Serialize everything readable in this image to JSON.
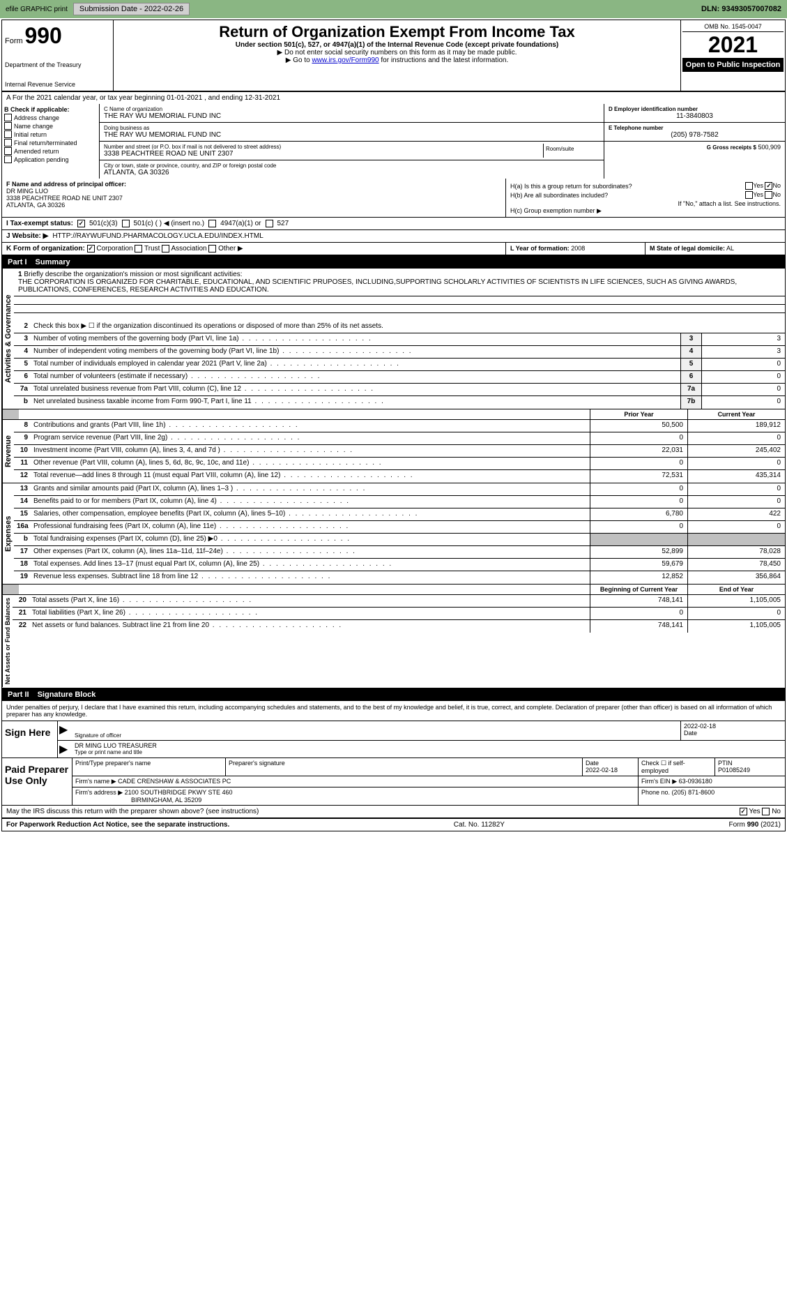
{
  "top": {
    "efile": "efile GRAPHIC print",
    "submission_label": "Submission Date - 2022-02-26",
    "dln": "DLN: 93493057007082"
  },
  "header": {
    "form_label": "Form",
    "form_number": "990",
    "title": "Return of Organization Exempt From Income Tax",
    "subtitle": "Under section 501(c), 527, or 4947(a)(1) of the Internal Revenue Code (except private foundations)",
    "note1": "▶ Do not enter social security numbers on this form as it may be made public.",
    "note2_pre": "▶ Go to ",
    "note2_link": "www.irs.gov/Form990",
    "note2_post": " for instructions and the latest information.",
    "dept": "Department of the Treasury",
    "irs": "Internal Revenue Service",
    "omb": "OMB No. 1545-0047",
    "year": "2021",
    "open": "Open to Public Inspection"
  },
  "row_a": "A For the 2021 calendar year, or tax year beginning 01-01-2021    , and ending 12-31-2021",
  "section_b": {
    "header": "B Check if applicable:",
    "checks": [
      "Address change",
      "Name change",
      "Initial return",
      "Final return/terminated",
      "Amended return",
      "Application pending"
    ],
    "c_label": "C Name of organization",
    "c_name": "THE RAY WU MEMORIAL FUND INC",
    "dba_label": "Doing business as",
    "dba": "THE RAY WU MEMORIAL FUND INC",
    "addr_label": "Number and street (or P.O. box if mail is not delivered to street address)",
    "addr": "3338 PEACHTREE ROAD NE UNIT 2307",
    "room_label": "Room/suite",
    "city_label": "City or town, state or province, country, and ZIP or foreign postal code",
    "city": "ATLANTA, GA  30326",
    "d_label": "D Employer identification number",
    "d_val": "11-3840803",
    "e_label": "E Telephone number",
    "e_val": "(205) 978-7582",
    "g_label": "G Gross receipts $",
    "g_val": "500,909"
  },
  "section_f": {
    "label": "F Name and address of principal officer:",
    "name": "DR MING LUO",
    "addr1": "3338 PEACHTREE ROAD NE UNIT 2307",
    "addr2": "ATLANTA, GA  30326"
  },
  "section_h": {
    "ha": "H(a) Is this a group return for subordinates?",
    "ha_yes": "Yes",
    "ha_no": "No",
    "hb": "H(b) Are all subordinates included?",
    "hb_yes": "Yes",
    "hb_no": "No",
    "hb_note": "If \"No,\" attach a list. See instructions.",
    "hc": "H(c) Group exemption number ▶"
  },
  "row_i": {
    "label": "I Tax-exempt status:",
    "opt1": "501(c)(3)",
    "opt2": "501(c) (   ) ◀ (insert no.)",
    "opt3": "4947(a)(1) or",
    "opt4": "527"
  },
  "row_j": {
    "label": "J Website: ▶",
    "val": "HTTP://RAYWUFUND.PHARMACOLOGY.UCLA.EDU/INDEX.HTML"
  },
  "row_k": {
    "label": "K Form of organization:",
    "opts": [
      "Corporation",
      "Trust",
      "Association",
      "Other ▶"
    ]
  },
  "row_l": {
    "label": "L Year of formation:",
    "val": "2008"
  },
  "row_m": {
    "label": "M State of legal domicile:",
    "val": "AL"
  },
  "part1": {
    "num": "Part I",
    "title": "Summary",
    "q1_label": "1",
    "q1": "Briefly describe the organization's mission or most significant activities:",
    "q1_text": "THE CORPORATION IS ORGANIZED FOR CHARITABLE, EDUCATIONAL, AND SCIENTIFIC PRUPOSES, INCLUDING,SUPPORTING SCHOLARLY ACTIVITIES OF SCIENTISTS IN LIFE SCIENCES, SUCH AS GIVING AWARDS, PUBLICATIONS, CONFERENCES, RESEARCH ACTIVITIES AND EDUCATION.",
    "q2": "Check this box ▶ ☐ if the organization discontinued its operations or disposed of more than 25% of its net assets.",
    "governance_label": "Activities & Governance",
    "lines_gov": [
      {
        "n": "3",
        "d": "Number of voting members of the governing body (Part VI, line 1a)",
        "nc": "3",
        "v": "3"
      },
      {
        "n": "4",
        "d": "Number of independent voting members of the governing body (Part VI, line 1b)",
        "nc": "4",
        "v": "3"
      },
      {
        "n": "5",
        "d": "Total number of individuals employed in calendar year 2021 (Part V, line 2a)",
        "nc": "5",
        "v": "0"
      },
      {
        "n": "6",
        "d": "Total number of volunteers (estimate if necessary)",
        "nc": "6",
        "v": "0"
      },
      {
        "n": "7a",
        "d": "Total unrelated business revenue from Part VIII, column (C), line 12",
        "nc": "7a",
        "v": "0"
      },
      {
        "n": "b",
        "d": "Net unrelated business taxable income from Form 990-T, Part I, line 11",
        "nc": "7b",
        "v": "0"
      }
    ],
    "prior_year": "Prior Year",
    "current_year": "Current Year",
    "revenue_label": "Revenue",
    "lines_rev": [
      {
        "n": "8",
        "d": "Contributions and grants (Part VIII, line 1h)",
        "p": "50,500",
        "c": "189,912"
      },
      {
        "n": "9",
        "d": "Program service revenue (Part VIII, line 2g)",
        "p": "0",
        "c": "0"
      },
      {
        "n": "10",
        "d": "Investment income (Part VIII, column (A), lines 3, 4, and 7d )",
        "p": "22,031",
        "c": "245,402"
      },
      {
        "n": "11",
        "d": "Other revenue (Part VIII, column (A), lines 5, 6d, 8c, 9c, 10c, and 11e)",
        "p": "0",
        "c": "0"
      },
      {
        "n": "12",
        "d": "Total revenue—add lines 8 through 11 (must equal Part VIII, column (A), line 12)",
        "p": "72,531",
        "c": "435,314"
      }
    ],
    "expenses_label": "Expenses",
    "lines_exp": [
      {
        "n": "13",
        "d": "Grants and similar amounts paid (Part IX, column (A), lines 1–3 )",
        "p": "0",
        "c": "0"
      },
      {
        "n": "14",
        "d": "Benefits paid to or for members (Part IX, column (A), line 4)",
        "p": "0",
        "c": "0"
      },
      {
        "n": "15",
        "d": "Salaries, other compensation, employee benefits (Part IX, column (A), lines 5–10)",
        "p": "6,780",
        "c": "422"
      },
      {
        "n": "16a",
        "d": "Professional fundraising fees (Part IX, column (A), line 11e)",
        "p": "0",
        "c": "0"
      },
      {
        "n": "b",
        "d": "Total fundraising expenses (Part IX, column (D), line 25) ▶0",
        "p": "",
        "c": "",
        "shaded": true
      },
      {
        "n": "17",
        "d": "Other expenses (Part IX, column (A), lines 11a–11d, 11f–24e)",
        "p": "52,899",
        "c": "78,028"
      },
      {
        "n": "18",
        "d": "Total expenses. Add lines 13–17 (must equal Part IX, column (A), line 25)",
        "p": "59,679",
        "c": "78,450"
      },
      {
        "n": "19",
        "d": "Revenue less expenses. Subtract line 18 from line 12",
        "p": "12,852",
        "c": "356,864"
      }
    ],
    "net_label": "Net Assets or Fund Balances",
    "begin_year": "Beginning of Current Year",
    "end_year": "End of Year",
    "lines_net": [
      {
        "n": "20",
        "d": "Total assets (Part X, line 16)",
        "p": "748,141",
        "c": "1,105,005"
      },
      {
        "n": "21",
        "d": "Total liabilities (Part X, line 26)",
        "p": "0",
        "c": "0"
      },
      {
        "n": "22",
        "d": "Net assets or fund balances. Subtract line 21 from line 20",
        "p": "748,141",
        "c": "1,105,005"
      }
    ]
  },
  "part2": {
    "num": "Part II",
    "title": "Signature Block",
    "decl": "Under penalties of perjury, I declare that I have examined this return, including accompanying schedules and statements, and to the best of my knowledge and belief, it is true, correct, and complete. Declaration of preparer (other than officer) is based on all information of which preparer has any knowledge.",
    "sign_here": "Sign Here",
    "sig_officer": "Signature of officer",
    "sig_date": "2022-02-18",
    "date_lbl": "Date",
    "officer_name": "DR MING LUO TREASURER",
    "type_name": "Type or print name and title",
    "paid_prep": "Paid Preparer Use Only",
    "print_name_lbl": "Print/Type preparer's name",
    "prep_sig_lbl": "Preparer's signature",
    "prep_date_lbl": "Date",
    "prep_date": "2022-02-18",
    "check_self": "Check ☐ if self-employed",
    "ptin_lbl": "PTIN",
    "ptin": "P01085249",
    "firm_name_lbl": "Firm's name ▶",
    "firm_name": "CADE CRENSHAW & ASSOCIATES PC",
    "firm_ein_lbl": "Firm's EIN ▶",
    "firm_ein": "63-0936180",
    "firm_addr_lbl": "Firm's address ▶",
    "firm_addr": "2100 SOUTHBRIDGE PKWY STE 460",
    "firm_city": "BIRMINGHAM, AL  35209",
    "phone_lbl": "Phone no.",
    "phone": "(205) 871-8600",
    "may_irs": "May the IRS discuss this return with the preparer shown above? (see instructions)",
    "yes": "Yes",
    "no": "No"
  },
  "footer": {
    "paperwork": "For Paperwork Reduction Act Notice, see the separate instructions.",
    "cat": "Cat. No. 11282Y",
    "form": "Form 990 (2021)"
  }
}
